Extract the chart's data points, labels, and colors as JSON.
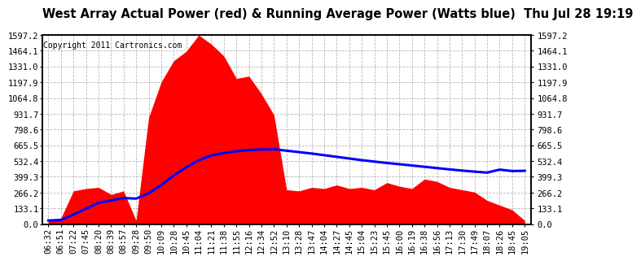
{
  "title": "West Array Actual Power (red) & Running Average Power (Watts blue)  Thu Jul 28 19:19",
  "copyright": "Copyright 2011 Cartronics.com",
  "yticks": [
    0.0,
    133.1,
    266.2,
    399.3,
    532.4,
    665.5,
    798.6,
    931.7,
    1064.8,
    1197.9,
    1331.0,
    1464.1,
    1597.2
  ],
  "ymax": 1597.2,
  "ymin": 0.0,
  "x_labels": [
    "06:32",
    "06:51",
    "07:22",
    "07:45",
    "08:20",
    "08:39",
    "08:57",
    "09:28",
    "09:50",
    "10:09",
    "10:28",
    "10:45",
    "11:04",
    "11:21",
    "11:38",
    "11:55",
    "12:16",
    "12:34",
    "12:52",
    "13:10",
    "13:28",
    "13:47",
    "14:04",
    "14:27",
    "14:45",
    "15:04",
    "15:23",
    "15:45",
    "16:00",
    "16:19",
    "16:38",
    "16:56",
    "17:13",
    "17:30",
    "17:49",
    "18:07",
    "18:26",
    "18:45",
    "19:05"
  ],
  "raw_power": [
    30,
    50,
    280,
    300,
    310,
    250,
    280,
    30,
    900,
    1200,
    1380,
    1460,
    1597,
    1520,
    1420,
    1230,
    1250,
    1100,
    920,
    290,
    280,
    310,
    300,
    330,
    300,
    310,
    290,
    350,
    320,
    300,
    380,
    360,
    310,
    290,
    270,
    200,
    160,
    120,
    30
  ],
  "running_avg": [
    30,
    35,
    80,
    130,
    180,
    200,
    220,
    215,
    260,
    330,
    410,
    480,
    540,
    580,
    600,
    615,
    625,
    630,
    632,
    620,
    608,
    596,
    582,
    568,
    554,
    540,
    528,
    516,
    506,
    495,
    484,
    473,
    462,
    452,
    443,
    435,
    460,
    448,
    450
  ],
  "bg_color": "#ffffff",
  "plot_bg": "#ffffff",
  "grid_color": "#b0b0b0",
  "area_color": "#ff0000",
  "line_color": "#0000ff",
  "border_color": "#000000",
  "title_fontsize": 10.5,
  "tick_fontsize": 7.5,
  "copyright_fontsize": 7
}
